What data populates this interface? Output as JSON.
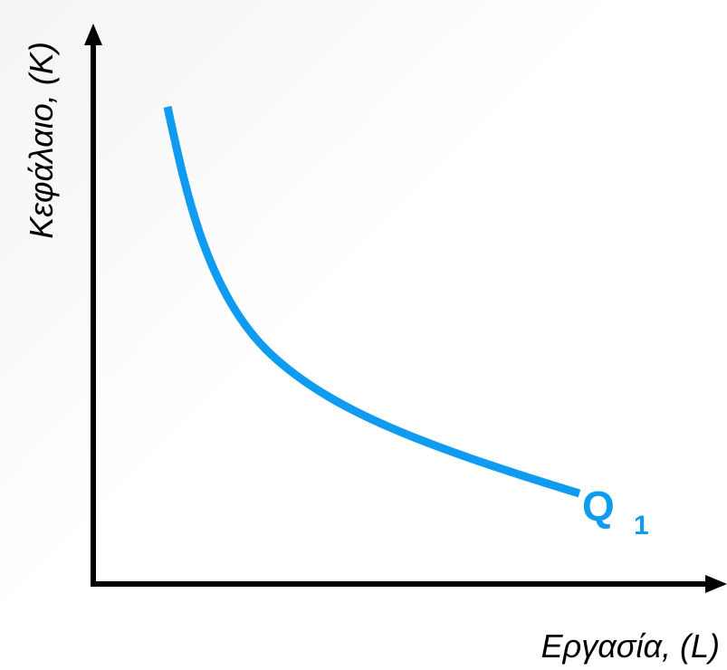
{
  "axes": {
    "y_label": "Κεφάλαιο, (K)",
    "x_label": "Εργασία, (L)"
  },
  "curve": {
    "label": "Q",
    "subscript": "1"
  }
}
